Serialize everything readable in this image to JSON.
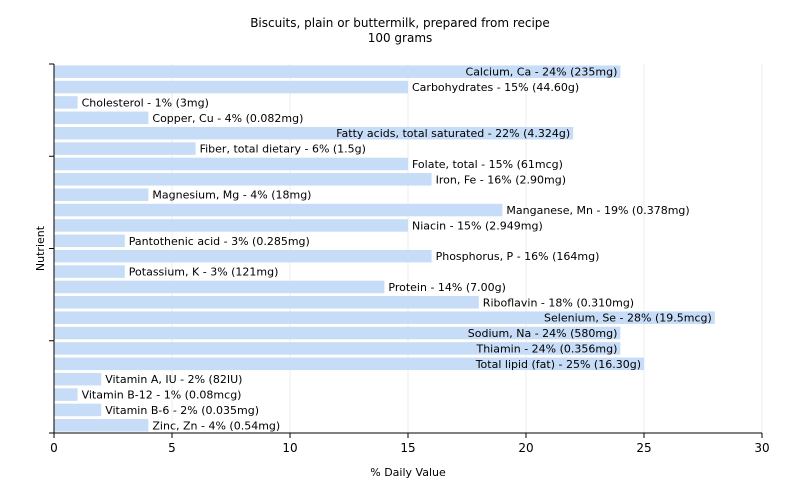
{
  "chart_data": {
    "type": "bar",
    "orientation": "horizontal",
    "title": "Biscuits, plain or buttermilk, prepared from recipe",
    "subtitle": "100 grams",
    "xlabel": "% Daily Value",
    "ylabel": "Nutrient",
    "xlim": [
      0,
      30
    ],
    "xticks": [
      0,
      5,
      10,
      15,
      20,
      25,
      30
    ],
    "grid": true,
    "bar_color": "#c6dcf7",
    "categories": [
      "Calcium, Ca",
      "Carbohydrates",
      "Cholesterol",
      "Copper, Cu",
      "Fatty acids, total saturated",
      "Fiber, total dietary",
      "Folate, total",
      "Iron, Fe",
      "Magnesium, Mg",
      "Manganese, Mn",
      "Niacin",
      "Pantothenic acid",
      "Phosphorus, P",
      "Potassium, K",
      "Protein",
      "Riboflavin",
      "Selenium, Se",
      "Sodium, Na",
      "Thiamin",
      "Total lipid (fat)",
      "Vitamin A, IU",
      "Vitamin B-12",
      "Vitamin B-6",
      "Zinc, Zn"
    ],
    "values": [
      24,
      15,
      1,
      4,
      22,
      6,
      15,
      16,
      4,
      19,
      15,
      3,
      16,
      3,
      14,
      18,
      28,
      24,
      24,
      25,
      2,
      1,
      2,
      4
    ],
    "labels": [
      "Calcium, Ca - 24% (235mg)",
      "Carbohydrates - 15% (44.60g)",
      "Cholesterol - 1% (3mg)",
      "Copper, Cu - 4% (0.082mg)",
      "Fatty acids, total saturated - 22% (4.324g)",
      "Fiber, total dietary - 6% (1.5g)",
      "Folate, total - 15% (61mcg)",
      "Iron, Fe - 16% (2.90mg)",
      "Magnesium, Mg - 4% (18mg)",
      "Manganese, Mn - 19% (0.378mg)",
      "Niacin - 15% (2.949mg)",
      "Pantothenic acid - 3% (0.285mg)",
      "Phosphorus, P - 16% (164mg)",
      "Potassium, K - 3% (121mg)",
      "Protein - 14% (7.00g)",
      "Riboflavin - 18% (0.310mg)",
      "Selenium, Se - 28% (19.5mcg)",
      "Sodium, Na - 24% (580mg)",
      "Thiamin - 24% (0.356mg)",
      "Total lipid (fat) - 25% (16.30g)",
      "Vitamin A, IU - 2% (82IU)",
      "Vitamin B-12 - 1% (0.08mcg)",
      "Vitamin B-6 - 2% (0.035mg)",
      "Zinc, Zn - 4% (0.54mg)"
    ]
  }
}
